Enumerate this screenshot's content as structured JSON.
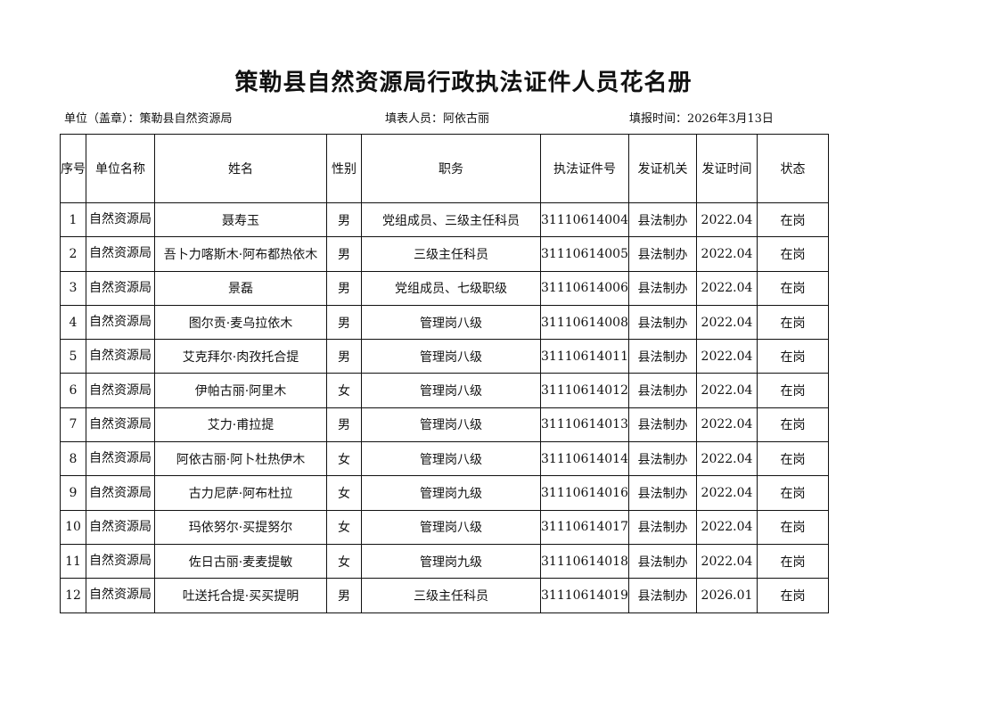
{
  "title": "策勒县自然资源局行政执法证件人员花名册",
  "meta": {
    "unit": "单位（盖章）：策勒县自然资源局",
    "filler": "填表人员：阿依古丽",
    "date": "填报时间：2026年3月13日"
  },
  "headers": [
    "序号",
    "单位名称",
    "姓名",
    "性别",
    "职务",
    "执法证件号",
    "发证机关",
    "发证时间",
    "状态"
  ],
  "rows": [
    [
      "1",
      "自然资源局",
      "聂寿玉",
      "男",
      "党组成员、三级主任科员",
      "31110614004",
      "县法制办",
      "2022.04",
      "在岗"
    ],
    [
      "2",
      "自然资源局",
      "吾卜力喀斯木·阿布都热依木",
      "男",
      "三级主任科员",
      "31110614005",
      "县法制办",
      "2022.04",
      "在岗"
    ],
    [
      "3",
      "自然资源局",
      "景磊",
      "男",
      "党组成员、七级职级",
      "31110614006",
      "县法制办",
      "2022.04",
      "在岗"
    ],
    [
      "4",
      "自然资源局",
      "图尔贡·麦乌拉依木",
      "男",
      "管理岗八级",
      "31110614008",
      "县法制办",
      "2022.04",
      "在岗"
    ],
    [
      "5",
      "自然资源局",
      "艾克拜尔·肉孜托合提",
      "男",
      "管理岗八级",
      "31110614011",
      "县法制办",
      "2022.04",
      "在岗"
    ],
    [
      "6",
      "自然资源局",
      "伊帕古丽·阿里木",
      "女",
      "管理岗八级",
      "31110614012",
      "县法制办",
      "2022.04",
      "在岗"
    ],
    [
      "7",
      "自然资源局",
      "艾力·甫拉提",
      "男",
      "管理岗八级",
      "31110614013",
      "县法制办",
      "2022.04",
      "在岗"
    ],
    [
      "8",
      "自然资源局",
      "阿依古丽·阿卜杜热伊木",
      "女",
      "管理岗八级",
      "31110614014",
      "县法制办",
      "2022.04",
      "在岗"
    ],
    [
      "9",
      "自然资源局",
      "古力尼萨·阿布杜拉",
      "女",
      "管理岗九级",
      "31110614016",
      "县法制办",
      "2022.04",
      "在岗"
    ],
    [
      "10",
      "自然资源局",
      "玛依努尔·买提努尔",
      "女",
      "管理岗八级",
      "31110614017",
      "县法制办",
      "2022.04",
      "在岗"
    ],
    [
      "11",
      "自然资源局",
      "佐日古丽·麦麦提敏",
      "女",
      "管理岗九级",
      "31110614018",
      "县法制办",
      "2022.04",
      "在岗"
    ],
    [
      "12",
      "自然资源局",
      "吐送托合提·买买提明",
      "男",
      "三级主任科员",
      "31110614019",
      "县法制办",
      "2026.01",
      "在岗"
    ]
  ]
}
